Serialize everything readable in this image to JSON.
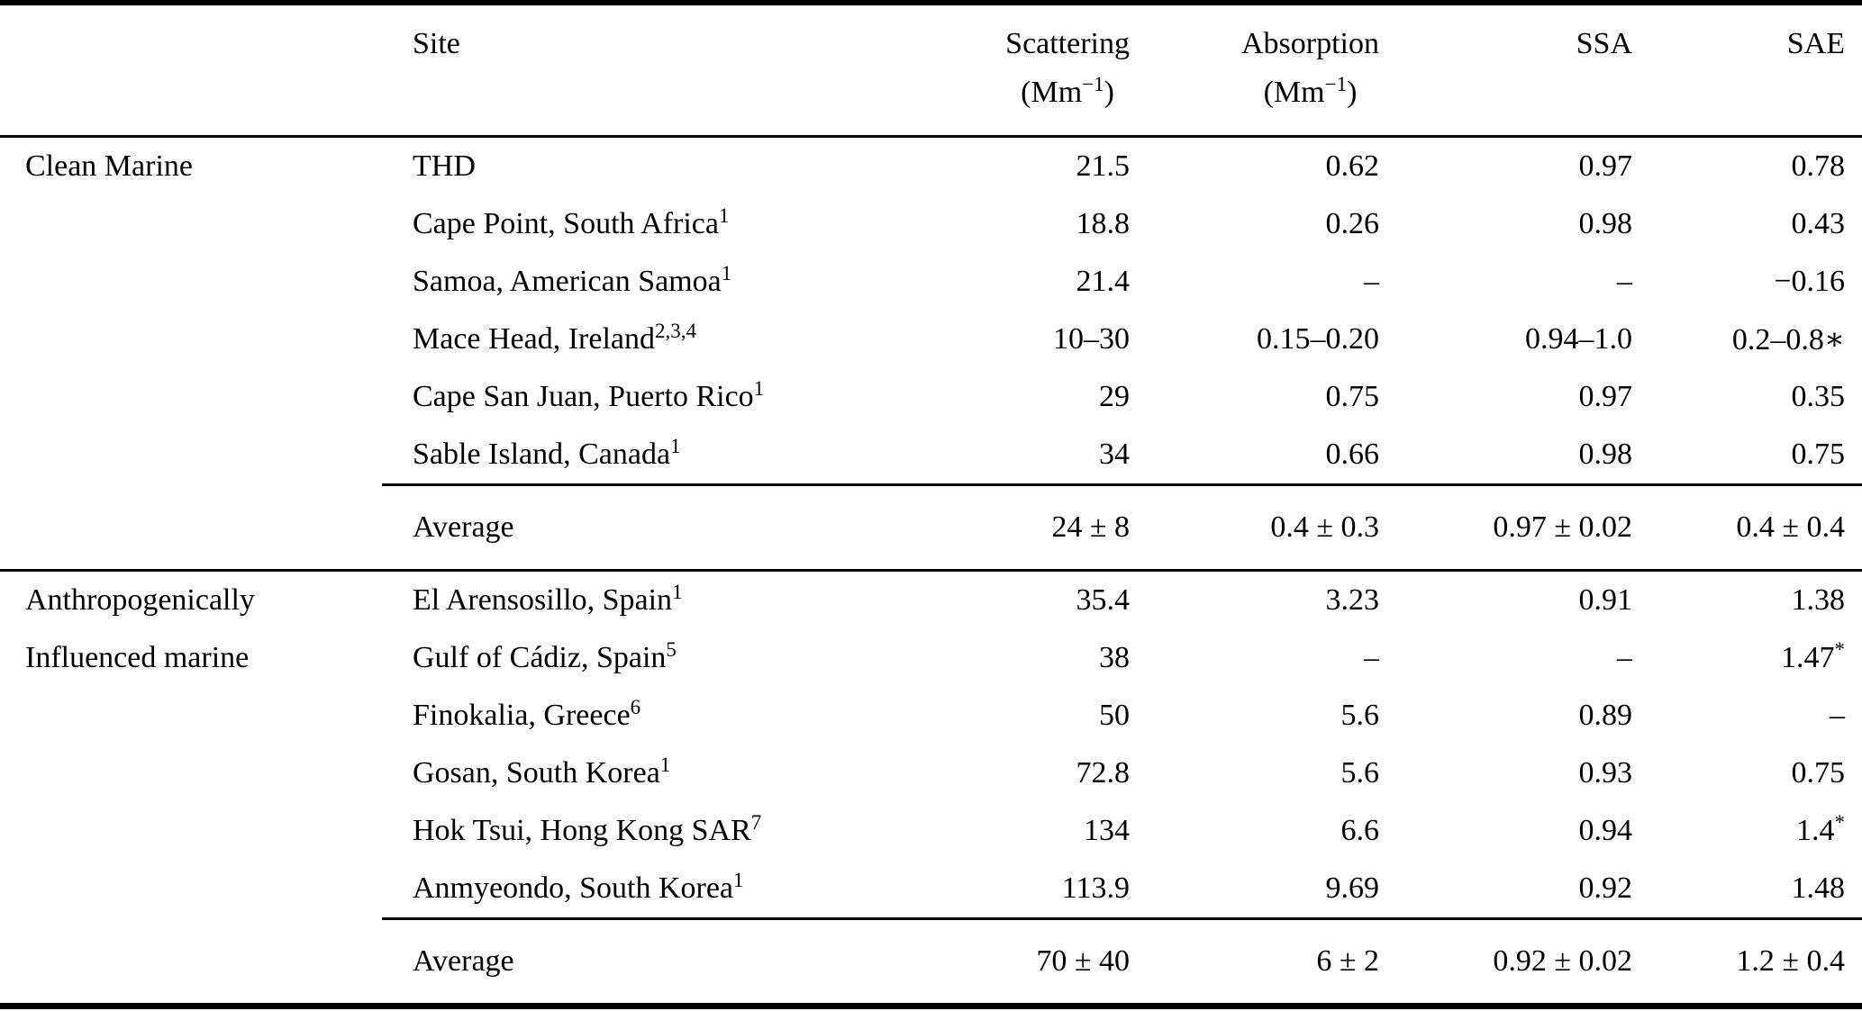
{
  "header": {
    "site": "Site",
    "scattering": {
      "label": "Scattering",
      "unit_prefix": "(Mm",
      "unit_sup": "−1",
      "unit_close": ")"
    },
    "absorption": {
      "label": "Absorption",
      "unit_prefix": "(Mm",
      "unit_sup": "−1",
      "unit_close": ")"
    },
    "ssa": "SSA",
    "sae": "SAE"
  },
  "sections": [
    {
      "category_lines": [
        "Clean Marine"
      ],
      "rows": [
        {
          "site": "THD",
          "sup": "",
          "scattering": "21.5",
          "absorption": "0.62",
          "ssa": "0.97",
          "sae": "0.78",
          "sae_sup": ""
        },
        {
          "site": "Cape Point, South Africa",
          "sup": "1",
          "scattering": "18.8",
          "absorption": "0.26",
          "ssa": "0.98",
          "sae": "0.43",
          "sae_sup": ""
        },
        {
          "site": "Samoa, American Samoa",
          "sup": "1",
          "scattering": "21.4",
          "absorption": "–",
          "ssa": "–",
          "sae": "−0.16",
          "sae_sup": ""
        },
        {
          "site": "Mace Head, Ireland",
          "sup": "2,3,4",
          "scattering": "10–30",
          "absorption": "0.15–0.20",
          "ssa": "0.94–1.0",
          "sae": "0.2–0.8∗",
          "sae_sup": ""
        },
        {
          "site": "Cape San Juan, Puerto Rico",
          "sup": "1",
          "scattering": "29",
          "absorption": "0.75",
          "ssa": "0.97",
          "sae": "0.35",
          "sae_sup": ""
        },
        {
          "site": "Sable Island, Canada",
          "sup": "1",
          "scattering": "34",
          "absorption": "0.66",
          "ssa": "0.98",
          "sae": "0.75",
          "sae_sup": ""
        }
      ],
      "average": {
        "label": "Average",
        "scattering": "24 ± 8",
        "absorption": "0.4 ± 0.3",
        "ssa": "0.97 ± 0.02",
        "sae": "0.4 ± 0.4"
      }
    },
    {
      "category_lines": [
        "Anthropogenically",
        "Influenced marine"
      ],
      "rows": [
        {
          "site": "El Arensosillo, Spain",
          "sup": "1",
          "scattering": "35.4",
          "absorption": "3.23",
          "ssa": "0.91",
          "sae": "1.38",
          "sae_sup": ""
        },
        {
          "site": "Gulf of Cádiz, Spain",
          "sup": "5",
          "scattering": "38",
          "absorption": "–",
          "ssa": "–",
          "sae": "1.47",
          "sae_sup": "*"
        },
        {
          "site": "Finokalia, Greece",
          "sup": "6",
          "scattering": "50",
          "absorption": "5.6",
          "ssa": "0.89",
          "sae": "–",
          "sae_sup": ""
        },
        {
          "site": "Gosan, South Korea",
          "sup": "1",
          "scattering": "72.8",
          "absorption": "5.6",
          "ssa": "0.93",
          "sae": "0.75",
          "sae_sup": ""
        },
        {
          "site": "Hok Tsui, Hong Kong SAR",
          "sup": "7",
          "scattering": "134",
          "absorption": "6.6",
          "ssa": "0.94",
          "sae": "1.4",
          "sae_sup": "*"
        },
        {
          "site": "Anmyeondo, South Korea",
          "sup": "1",
          "scattering": "113.9",
          "absorption": "9.69",
          "ssa": "0.92",
          "sae": "1.48",
          "sae_sup": ""
        }
      ],
      "average": {
        "label": "Average",
        "scattering": "70 ± 40",
        "absorption": "6 ± 2",
        "ssa": "0.92 ± 0.02",
        "sae": "1.2 ± 0.4"
      }
    }
  ],
  "colors": {
    "text": "#000000",
    "background": "#ffffff",
    "rule": "#000000"
  }
}
